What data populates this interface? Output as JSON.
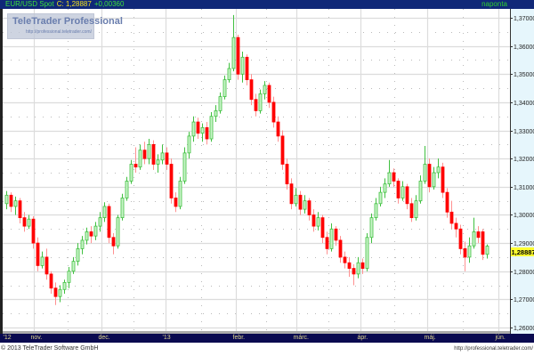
{
  "header": {
    "symbol": "EUR/USD Spot",
    "close": "C: 1,28887",
    "change": "+0,00360",
    "period": "naponta"
  },
  "watermark": {
    "title": "TeleTrader Professional",
    "url": "http://professional.teletrader.com/"
  },
  "footer": {
    "copyright": "© 2013 TeleTrader Software GmbH",
    "url": "http://professional.teletrader.com/"
  },
  "colors": {
    "up_body": "#c8f4c8",
    "up_border": "#40c040",
    "down_body": "#ff0000",
    "down_wick": "#ff9090",
    "header_bg": "#102878",
    "axis_bg": "#e6f6fc",
    "timebar_bg": "#0a0a50",
    "last_price_bg": "#ffff30"
  },
  "chart_data": {
    "type": "candlestick",
    "title": "",
    "ylim": [
      1.26,
      1.37
    ],
    "y_ticks": [
      "1,37000",
      "1,36000",
      "1,35000",
      "1,34000",
      "1,33000",
      "1,32000",
      "1,31000",
      "1,30000",
      "1,29000",
      "1,28000",
      "1,27000",
      "1,26000"
    ],
    "y_tick_values": [
      1.37,
      1.36,
      1.35,
      1.34,
      1.33,
      1.32,
      1.31,
      1.3,
      1.29,
      1.28,
      1.27,
      1.26
    ],
    "last_price": 1.28887,
    "last_price_label": "1,28887",
    "x_ticks": [
      {
        "label": "'12",
        "index": -0.8
      },
      {
        "label": "nov.",
        "index": 6.2
      },
      {
        "label": "dec.",
        "index": 21.4
      },
      {
        "label": "'13",
        "index": 35.8
      },
      {
        "label": "febr.",
        "index": 51.6
      },
      {
        "label": "márc.",
        "index": 65.2
      },
      {
        "label": "ápr.",
        "index": 79.6
      },
      {
        "label": "máj.",
        "index": 94.6
      },
      {
        "label": "jún.",
        "index": 110.6
      }
    ],
    "grid": true,
    "candles_ohlc": [
      [
        1.304,
        1.3085,
        1.302,
        1.307
      ],
      [
        1.307,
        1.308,
        1.301,
        1.303
      ],
      [
        1.303,
        1.3065,
        1.3,
        1.305
      ],
      [
        1.305,
        1.306,
        1.297,
        1.299
      ],
      [
        1.299,
        1.301,
        1.294,
        1.296
      ],
      [
        1.296,
        1.3,
        1.295,
        1.2985
      ],
      [
        1.2985,
        1.2995,
        1.288,
        1.29
      ],
      [
        1.29,
        1.292,
        1.28,
        1.282
      ],
      [
        1.282,
        1.287,
        1.281,
        1.285
      ],
      [
        1.285,
        1.288,
        1.277,
        1.279
      ],
      [
        1.279,
        1.28,
        1.272,
        1.274
      ],
      [
        1.274,
        1.276,
        1.268,
        1.271
      ],
      [
        1.271,
        1.275,
        1.269,
        1.2735
      ],
      [
        1.2735,
        1.277,
        1.272,
        1.276
      ],
      [
        1.276,
        1.2815,
        1.274,
        1.28
      ],
      [
        1.28,
        1.285,
        1.279,
        1.2835
      ],
      [
        1.2835,
        1.29,
        1.282,
        1.288
      ],
      [
        1.288,
        1.2925,
        1.286,
        1.291
      ],
      [
        1.291,
        1.2955,
        1.2895,
        1.294
      ],
      [
        1.294,
        1.296,
        1.29,
        1.2925
      ],
      [
        1.2925,
        1.2975,
        1.291,
        1.296
      ],
      [
        1.296,
        1.301,
        1.294,
        1.299
      ],
      [
        1.299,
        1.3045,
        1.2975,
        1.303
      ],
      [
        1.303,
        1.304,
        1.29,
        1.292
      ],
      [
        1.292,
        1.2935,
        1.286,
        1.289
      ],
      [
        1.289,
        1.3,
        1.288,
        1.299
      ],
      [
        1.299,
        1.3075,
        1.298,
        1.306
      ],
      [
        1.306,
        1.3135,
        1.305,
        1.312
      ],
      [
        1.312,
        1.3195,
        1.311,
        1.318
      ],
      [
        1.318,
        1.324,
        1.315,
        1.317
      ],
      [
        1.317,
        1.325,
        1.316,
        1.323
      ],
      [
        1.323,
        1.326,
        1.318,
        1.32
      ],
      [
        1.32,
        1.327,
        1.318,
        1.325
      ],
      [
        1.325,
        1.3265,
        1.316,
        1.318
      ],
      [
        1.318,
        1.3215,
        1.315,
        1.3195
      ],
      [
        1.3195,
        1.325,
        1.318,
        1.322
      ],
      [
        1.322,
        1.324,
        1.316,
        1.318
      ],
      [
        1.318,
        1.32,
        1.304,
        1.306
      ],
      [
        1.306,
        1.308,
        1.301,
        1.303
      ],
      [
        1.303,
        1.3135,
        1.302,
        1.312
      ],
      [
        1.312,
        1.324,
        1.311,
        1.322
      ],
      [
        1.322,
        1.3295,
        1.32,
        1.328
      ],
      [
        1.328,
        1.335,
        1.326,
        1.333
      ],
      [
        1.333,
        1.3345,
        1.327,
        1.329
      ],
      [
        1.329,
        1.3325,
        1.326,
        1.331
      ],
      [
        1.331,
        1.333,
        1.325,
        1.327
      ],
      [
        1.327,
        1.3365,
        1.326,
        1.335
      ],
      [
        1.335,
        1.339,
        1.333,
        1.337
      ],
      [
        1.337,
        1.3435,
        1.336,
        1.342
      ],
      [
        1.342,
        1.3495,
        1.341,
        1.348
      ],
      [
        1.348,
        1.354,
        1.347,
        1.352
      ],
      [
        1.352,
        1.371,
        1.351,
        1.363
      ],
      [
        1.363,
        1.364,
        1.348,
        1.35
      ],
      [
        1.35,
        1.358,
        1.347,
        1.356
      ],
      [
        1.356,
        1.357,
        1.346,
        1.348
      ],
      [
        1.348,
        1.35,
        1.339,
        1.341
      ],
      [
        1.341,
        1.343,
        1.335,
        1.337
      ],
      [
        1.337,
        1.3445,
        1.336,
        1.343
      ],
      [
        1.343,
        1.3475,
        1.341,
        1.346
      ],
      [
        1.346,
        1.347,
        1.338,
        1.34
      ],
      [
        1.34,
        1.342,
        1.331,
        1.333
      ],
      [
        1.333,
        1.335,
        1.326,
        1.328
      ],
      [
        1.328,
        1.33,
        1.316,
        1.318
      ],
      [
        1.318,
        1.32,
        1.309,
        1.311
      ],
      [
        1.311,
        1.313,
        1.302,
        1.304
      ],
      [
        1.304,
        1.3095,
        1.303,
        1.307
      ],
      [
        1.307,
        1.3085,
        1.3,
        1.302
      ],
      [
        1.302,
        1.307,
        1.3005,
        1.305
      ],
      [
        1.305,
        1.306,
        1.298,
        1.3
      ],
      [
        1.3,
        1.302,
        1.294,
        1.296
      ],
      [
        1.296,
        1.301,
        1.2945,
        1.299
      ],
      [
        1.299,
        1.3,
        1.29,
        1.292
      ],
      [
        1.292,
        1.294,
        1.286,
        1.288
      ],
      [
        1.288,
        1.297,
        1.287,
        1.295
      ],
      [
        1.295,
        1.296,
        1.289,
        1.291
      ],
      [
        1.291,
        1.2925,
        1.283,
        1.285
      ],
      [
        1.285,
        1.287,
        1.281,
        1.283
      ],
      [
        1.283,
        1.285,
        1.278,
        1.281
      ],
      [
        1.281,
        1.2825,
        1.275,
        1.279
      ],
      [
        1.279,
        1.285,
        1.2775,
        1.283
      ],
      [
        1.283,
        1.2845,
        1.279,
        1.281
      ],
      [
        1.281,
        1.2935,
        1.28,
        1.292
      ],
      [
        1.292,
        1.3005,
        1.29,
        1.299
      ],
      [
        1.299,
        1.306,
        1.298,
        1.304
      ],
      [
        1.304,
        1.31,
        1.303,
        1.308
      ],
      [
        1.308,
        1.313,
        1.306,
        1.311
      ],
      [
        1.311,
        1.3195,
        1.31,
        1.315
      ],
      [
        1.315,
        1.3165,
        1.31,
        1.312
      ],
      [
        1.312,
        1.313,
        1.304,
        1.306
      ],
      [
        1.306,
        1.312,
        1.305,
        1.31
      ],
      [
        1.31,
        1.311,
        1.302,
        1.304
      ],
      [
        1.304,
        1.306,
        1.2975,
        1.299
      ],
      [
        1.299,
        1.307,
        1.298,
        1.305
      ],
      [
        1.305,
        1.314,
        1.304,
        1.312
      ],
      [
        1.312,
        1.3245,
        1.311,
        1.318
      ],
      [
        1.318,
        1.32,
        1.308,
        1.31
      ],
      [
        1.31,
        1.317,
        1.309,
        1.315
      ],
      [
        1.315,
        1.32,
        1.313,
        1.317
      ],
      [
        1.317,
        1.3185,
        1.306,
        1.308
      ],
      [
        1.308,
        1.3095,
        1.299,
        1.301
      ],
      [
        1.301,
        1.305,
        1.295,
        1.297
      ],
      [
        1.297,
        1.299,
        1.292,
        1.295
      ],
      [
        1.295,
        1.2965,
        1.286,
        1.288
      ],
      [
        1.288,
        1.2905,
        1.28,
        1.285
      ],
      [
        1.285,
        1.292,
        1.283,
        1.289
      ],
      [
        1.289,
        1.299,
        1.288,
        1.294
      ],
      [
        1.294,
        1.296,
        1.29,
        1.292
      ],
      [
        1.294,
        1.295,
        1.284,
        1.286
      ],
      [
        1.286,
        1.2895,
        1.2845,
        1.2889
      ]
    ]
  }
}
